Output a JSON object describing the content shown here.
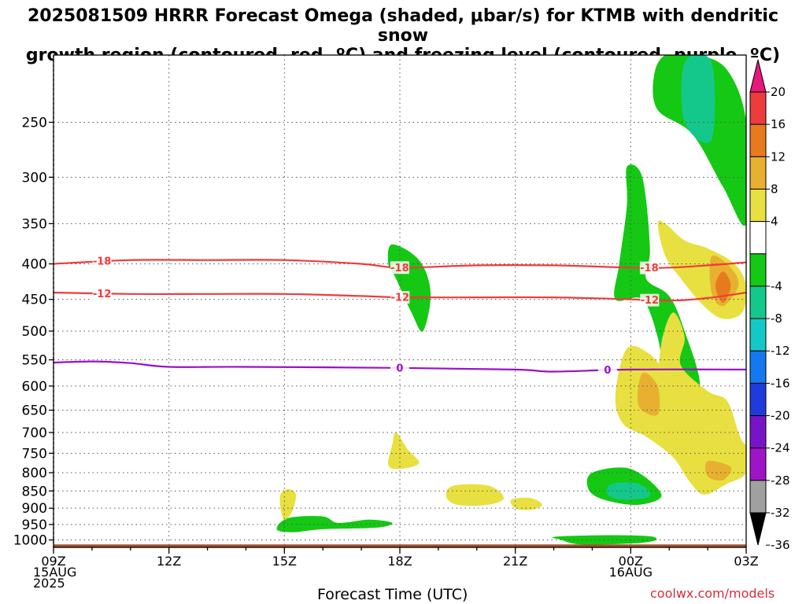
{
  "chart_data": {
    "type": "heatmap",
    "title": "2025081509 HRRR Forecast Omega (shaded, μbar/s) for KTMB with dendritic snow\ngrowth region (contoured, red, ºC) and freezing level (contoured, purple, ºC)",
    "xlabel": "Forecast Time (UTC)",
    "ylabel": "",
    "x_tick_labels": [
      {
        "hour": 0,
        "lines": [
          "09Z",
          "15AUG",
          "2025"
        ]
      },
      {
        "hour": 3,
        "lines": [
          "12Z"
        ]
      },
      {
        "hour": 6,
        "lines": [
          "15Z"
        ]
      },
      {
        "hour": 9,
        "lines": [
          "18Z"
        ]
      },
      {
        "hour": 12,
        "lines": [
          "21Z"
        ]
      },
      {
        "hour": 15,
        "lines": [
          "00Z",
          "16AUG"
        ]
      },
      {
        "hour": 18,
        "lines": [
          "03Z"
        ]
      }
    ],
    "xlim_hours": [
      0,
      18
    ],
    "y_scale": "log-pressure",
    "ylim_hPa": [
      1025,
      200
    ],
    "y_ticks": [
      250,
      300,
      350,
      400,
      450,
      500,
      550,
      600,
      650,
      700,
      750,
      800,
      850,
      900,
      950,
      1000
    ],
    "grid": true,
    "colorbar": {
      "label_values": [
        20,
        16,
        12,
        8,
        4,
        -4,
        -8,
        -12,
        -16,
        -20,
        -24,
        -28,
        -32,
        -36
      ],
      "bins": [
        {
          "range": [
            20,
            24
          ],
          "color": "#e8177a"
        },
        {
          "range": [
            16,
            20
          ],
          "color": "#ee3c3c"
        },
        {
          "range": [
            12,
            16
          ],
          "color": "#e87a1e"
        },
        {
          "range": [
            8,
            12
          ],
          "color": "#e8b030"
        },
        {
          "range": [
            4,
            8
          ],
          "color": "#e8e040"
        },
        {
          "range": [
            -4,
            4
          ],
          "color": "#ffffff"
        },
        {
          "range": [
            -8,
            -4
          ],
          "color": "#14c814"
        },
        {
          "range": [
            -12,
            -8
          ],
          "color": "#14c88c"
        },
        {
          "range": [
            -16,
            -12
          ],
          "color": "#14c8c8"
        },
        {
          "range": [
            -20,
            -16
          ],
          "color": "#1478f0"
        },
        {
          "range": [
            -24,
            -20
          ],
          "color": "#1e3cdc"
        },
        {
          "range": [
            -28,
            -24
          ],
          "color": "#7814c8"
        },
        {
          "range": [
            -32,
            -28
          ],
          "color": "#a014c8"
        },
        {
          "range": [
            -36,
            -32
          ],
          "color": "#a0a0a0"
        },
        {
          "range": [
            -40,
            -36
          ],
          "color": "#000000"
        }
      ]
    },
    "contours": [
      {
        "name": "-18",
        "color": "#ee3c3c",
        "labels": [
          "-18",
          "-18",
          "-18"
        ],
        "points": [
          [
            0,
            400
          ],
          [
            2,
            395
          ],
          [
            4,
            395
          ],
          [
            6,
            395
          ],
          [
            8,
            400
          ],
          [
            9,
            405
          ],
          [
            11,
            402
          ],
          [
            13,
            402
          ],
          [
            15,
            405
          ],
          [
            16,
            405
          ],
          [
            17,
            402
          ],
          [
            18,
            398
          ]
        ]
      },
      {
        "name": "-12",
        "color": "#ee3c3c",
        "labels": [
          "-12",
          "-12",
          "-12"
        ],
        "points": [
          [
            0,
            440
          ],
          [
            2,
            442
          ],
          [
            4,
            442
          ],
          [
            6,
            442
          ],
          [
            8,
            445
          ],
          [
            9,
            447
          ],
          [
            11,
            447
          ],
          [
            13,
            447
          ],
          [
            15,
            450
          ],
          [
            16,
            452
          ],
          [
            17,
            448
          ],
          [
            18,
            440
          ]
        ]
      },
      {
        "name": "0",
        "color": "#9a10c8",
        "labels": [
          "0",
          "0"
        ],
        "points": [
          [
            0,
            555
          ],
          [
            1,
            553
          ],
          [
            2,
            556
          ],
          [
            3,
            563
          ],
          [
            5,
            563
          ],
          [
            9,
            565
          ],
          [
            12,
            568
          ],
          [
            13,
            572
          ],
          [
            15,
            568
          ],
          [
            18,
            568
          ]
        ]
      }
    ],
    "terrain": {
      "surface_hPa": 1015,
      "color": "#a0522d"
    },
    "regions": [
      {
        "bin": [
          -8,
          -4
        ],
        "points": [
          [
            13.7,
            1015
          ],
          [
            13.2,
            1000
          ],
          [
            13.0,
            990
          ],
          [
            14.0,
            985
          ],
          [
            15.0,
            985
          ],
          [
            15.6,
            990
          ],
          [
            15.6,
            1003
          ],
          [
            15.0,
            1012
          ]
        ]
      },
      {
        "bin": [
          -8,
          -4
        ],
        "points": [
          [
            15.9,
            200
          ],
          [
            16.7,
            200
          ],
          [
            17.5,
            210
          ],
          [
            18.0,
            250
          ],
          [
            18.0,
            350
          ],
          [
            17.4,
            310
          ],
          [
            16.6,
            260
          ],
          [
            15.7,
            240
          ],
          [
            15.6,
            215
          ]
        ]
      },
      {
        "bin": [
          -12,
          -8
        ],
        "points": [
          [
            16.4,
            205
          ],
          [
            17.1,
            205
          ],
          [
            17.1,
            265
          ],
          [
            16.4,
            250
          ]
        ]
      },
      {
        "bin": [
          -8,
          -4
        ],
        "points": [
          [
            14.9,
            290
          ],
          [
            15.3,
            300
          ],
          [
            15.5,
            380
          ],
          [
            15.4,
            420
          ],
          [
            16.0,
            445
          ],
          [
            16.4,
            500
          ],
          [
            16.8,
            600
          ],
          [
            16.3,
            640
          ],
          [
            15.9,
            590
          ],
          [
            15.7,
            510
          ],
          [
            15.3,
            450
          ],
          [
            14.6,
            450
          ],
          [
            14.7,
            400
          ],
          [
            14.9,
            330
          ]
        ]
      },
      {
        "bin": [
          -12,
          -8
        ],
        "points": [
          [
            15.8,
            510
          ],
          [
            16.2,
            520
          ],
          [
            16.2,
            590
          ],
          [
            15.9,
            585
          ]
        ]
      },
      {
        "bin": [
          -8,
          -4
        ],
        "points": [
          [
            8.8,
            375
          ],
          [
            9.5,
            395
          ],
          [
            9.8,
            440
          ],
          [
            9.6,
            500
          ],
          [
            9.3,
            470
          ],
          [
            8.9,
            420
          ],
          [
            8.7,
            400
          ]
        ]
      },
      {
        "bin": [
          -8,
          -4
        ],
        "points": [
          [
            14.0,
            800
          ],
          [
            15.0,
            790
          ],
          [
            15.8,
            860
          ],
          [
            15.2,
            890
          ],
          [
            14.3,
            875
          ],
          [
            13.9,
            845
          ]
        ]
      },
      {
        "bin": [
          -12,
          -8
        ],
        "points": [
          [
            14.5,
            830
          ],
          [
            15.2,
            830
          ],
          [
            15.5,
            865
          ],
          [
            14.8,
            875
          ],
          [
            14.4,
            860
          ]
        ]
      },
      {
        "bin": [
          -8,
          -4
        ],
        "points": [
          [
            6.1,
            930
          ],
          [
            7.0,
            925
          ],
          [
            7.4,
            945
          ],
          [
            8.2,
            935
          ],
          [
            8.8,
            945
          ],
          [
            8.4,
            960
          ],
          [
            7.0,
            965
          ],
          [
            6.2,
            975
          ],
          [
            5.8,
            965
          ]
        ]
      },
      {
        "bin": [
          4,
          8
        ],
        "points": [
          [
            16.1,
            470
          ],
          [
            16.4,
            510
          ],
          [
            16.3,
            560
          ],
          [
            17.0,
            610
          ],
          [
            17.5,
            630
          ],
          [
            17.8,
            700
          ],
          [
            18.0,
            750
          ],
          [
            17.5,
            730
          ],
          [
            16.6,
            700
          ],
          [
            15.9,
            680
          ],
          [
            15.7,
            620
          ],
          [
            15.8,
            520
          ]
        ]
      },
      {
        "bin": [
          4,
          8
        ],
        "points": [
          [
            15.9,
            350
          ],
          [
            16.4,
            370
          ],
          [
            17.0,
            380
          ],
          [
            17.7,
            400
          ],
          [
            18.0,
            430
          ],
          [
            17.9,
            470
          ],
          [
            17.4,
            480
          ],
          [
            16.9,
            460
          ],
          [
            16.3,
            420
          ],
          [
            15.9,
            390
          ],
          [
            15.7,
            350
          ]
        ]
      },
      {
        "bin": [
          8,
          12
        ],
        "points": [
          [
            17.1,
            390
          ],
          [
            17.6,
            405
          ],
          [
            17.8,
            430
          ],
          [
            17.4,
            460
          ],
          [
            17.1,
            440
          ]
        ]
      },
      {
        "bin": [
          12,
          16
        ],
        "points": [
          [
            17.4,
            410
          ],
          [
            17.6,
            430
          ],
          [
            17.4,
            455
          ],
          [
            17.2,
            430
          ]
        ]
      },
      {
        "bin": [
          4,
          8
        ],
        "points": [
          [
            14.9,
            530
          ],
          [
            15.5,
            540
          ],
          [
            15.9,
            580
          ],
          [
            16.0,
            620
          ],
          [
            16.5,
            660
          ],
          [
            17.2,
            700
          ],
          [
            18.0,
            730
          ],
          [
            18.0,
            800
          ],
          [
            17.5,
            830
          ],
          [
            16.9,
            860
          ],
          [
            16.5,
            820
          ],
          [
            16.1,
            760
          ],
          [
            15.4,
            710
          ],
          [
            14.8,
            680
          ],
          [
            14.6,
            620
          ]
        ]
      },
      {
        "bin": [
          8,
          12
        ],
        "points": [
          [
            15.3,
            575
          ],
          [
            15.7,
            600
          ],
          [
            15.7,
            660
          ],
          [
            15.2,
            640
          ]
        ]
      },
      {
        "bin": [
          8,
          12
        ],
        "points": [
          [
            17.0,
            770
          ],
          [
            17.6,
            785
          ],
          [
            17.4,
            820
          ],
          [
            17.0,
            810
          ]
        ]
      },
      {
        "bin": [
          4,
          8
        ],
        "points": [
          [
            8.9,
            700
          ],
          [
            9.2,
            740
          ],
          [
            9.5,
            775
          ],
          [
            9.0,
            790
          ],
          [
            8.7,
            780
          ],
          [
            8.8,
            730
          ]
        ]
      },
      {
        "bin": [
          4,
          8
        ],
        "points": [
          [
            10.4,
            835
          ],
          [
            11.3,
            835
          ],
          [
            11.7,
            870
          ],
          [
            11.3,
            890
          ],
          [
            10.5,
            890
          ],
          [
            10.2,
            865
          ]
        ]
      },
      {
        "bin": [
          4,
          8
        ],
        "points": [
          [
            11.9,
            875
          ],
          [
            12.4,
            870
          ],
          [
            12.7,
            890
          ],
          [
            12.4,
            905
          ],
          [
            12.0,
            900
          ]
        ]
      },
      {
        "bin": [
          4,
          8
        ],
        "points": [
          [
            6.1,
            845
          ],
          [
            6.3,
            860
          ],
          [
            6.2,
            910
          ],
          [
            6.0,
            935
          ],
          [
            5.9,
            900
          ],
          [
            5.9,
            860
          ]
        ]
      }
    ]
  },
  "credit": "coolwx.com/models"
}
